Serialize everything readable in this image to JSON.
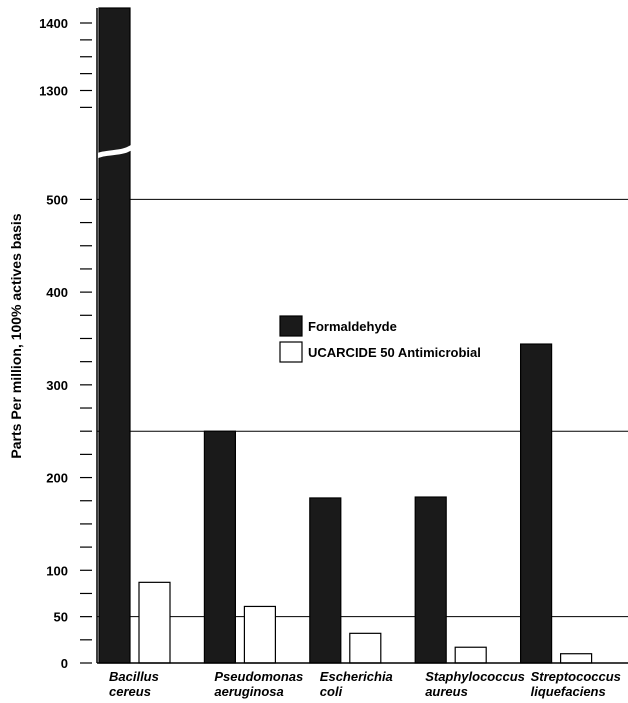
{
  "chart_data": {
    "type": "bar",
    "ylabel": "Parts Per million, 100% actives basis",
    "ylim": [
      0,
      1420
    ],
    "y_axis_break": [
      520,
      1270
    ],
    "y_tick_labels": [
      "0",
      "50",
      "100",
      "200",
      "300",
      "400",
      "500",
      "1300",
      "1400"
    ],
    "reference_lines": [
      50,
      250,
      500
    ],
    "categories": [
      {
        "line1": "Bacillus",
        "line2": "cereus"
      },
      {
        "line1": "Pseudomonas",
        "line2": "aeruginosa"
      },
      {
        "line1": "Escherichia",
        "line2": "coli"
      },
      {
        "line1": "Staphylococcus",
        "line2": "aureus"
      },
      {
        "line1": "Streptococcus",
        "line2": "liquefaciens"
      }
    ],
    "series": [
      {
        "name": "Formaldehyde",
        "fill": "#1a1a1a",
        "values": [
          1420,
          250,
          178,
          179,
          344
        ]
      },
      {
        "name": "UCARCIDE 50 Antimicrobial",
        "fill": "#ffffff",
        "values": [
          87,
          61,
          32,
          17,
          10
        ]
      }
    ],
    "legend_position": "center-right"
  }
}
